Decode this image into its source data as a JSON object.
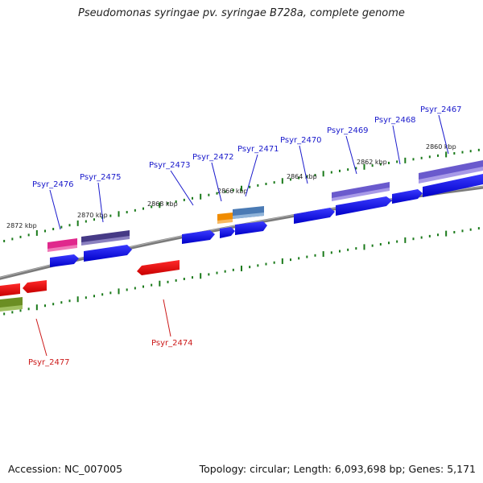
{
  "title": "Pseudomonas syringae pv. syringae B728a, complete genome",
  "footer": {
    "accession": "Accession: NC_007005",
    "summary": "Topology: circular; Length: 6,093,698 bp; Genes: 5,171"
  },
  "ticks": [
    {
      "label": "2872 kbp",
      "kbp": 2872
    },
    {
      "label": "2870 kbp",
      "kbp": 2870
    },
    {
      "label": "2868 kbp",
      "kbp": 2868
    },
    {
      "label": "2866 kbp",
      "kbp": 2866
    },
    {
      "label": "2864 kbp",
      "kbp": 2864
    },
    {
      "label": "2862 kbp",
      "kbp": 2862
    },
    {
      "label": "2860 kbp",
      "kbp": 2860
    }
  ],
  "genes": [
    {
      "name": "Psyr_2476",
      "strand": "+",
      "color": "#1a1acc"
    },
    {
      "name": "Psyr_2475",
      "strand": "+",
      "color": "#1a1acc"
    },
    {
      "name": "Psyr_2473",
      "strand": "+",
      "color": "#1a1acc"
    },
    {
      "name": "Psyr_2472",
      "strand": "+",
      "color": "#1a1acc"
    },
    {
      "name": "Psyr_2471",
      "strand": "+",
      "color": "#1a1acc"
    },
    {
      "name": "Psyr_2470",
      "strand": "+",
      "color": "#1a1acc"
    },
    {
      "name": "Psyr_2469",
      "strand": "+",
      "color": "#1a1acc"
    },
    {
      "name": "Psyr_2468",
      "strand": "+",
      "color": "#1a1acc"
    },
    {
      "name": "Psyr_2467",
      "strand": "+",
      "color": "#1a1acc"
    },
    {
      "name": "Psyr_2474",
      "strand": "-",
      "color": "#cc1a1a"
    },
    {
      "name": "Psyr_2477",
      "strand": "-",
      "color": "#cc1a1a"
    }
  ],
  "colors": {
    "gene_forward": "#0000ee",
    "gene_reverse": "#ee0000",
    "backbone": "#888888",
    "tick": "#1a7a1a",
    "cog_magenta": "#e0288c",
    "cog_indigo": "#4a3d8c",
    "cog_orange": "#f08c00",
    "cog_steelblue": "#4a7ab4",
    "cog_lavender": "#6a5acd",
    "cog_olive": "#6b8e23"
  }
}
